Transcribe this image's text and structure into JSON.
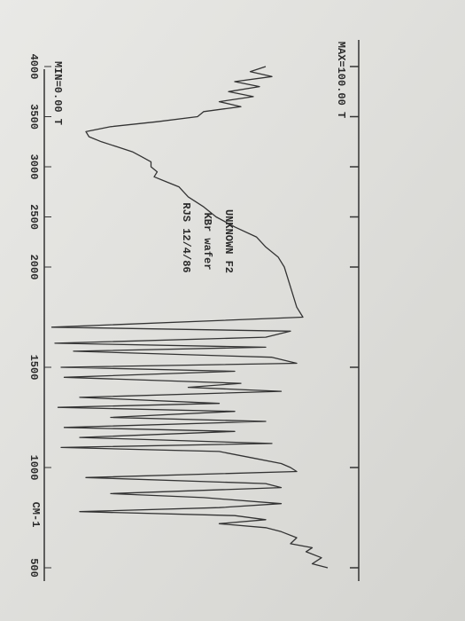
{
  "chart_data": {
    "type": "line",
    "max_label": "MAX=100.00 T",
    "min_label": "MIN=0.00 T",
    "x_label": "CM-1",
    "annotations": [
      "UNKNOWN F2",
      "KBr wafer",
      "RJS 12/4/86"
    ],
    "xlim": [
      4000,
      500
    ],
    "ylim": [
      0,
      100
    ],
    "xticks": [
      4000,
      3500,
      3000,
      2500,
      2000,
      1500,
      1000,
      500
    ],
    "color": "#333333",
    "x": [
      4000,
      3950,
      3900,
      3850,
      3800,
      3750,
      3700,
      3650,
      3600,
      3550,
      3500,
      3450,
      3400,
      3350,
      3300,
      3250,
      3200,
      3150,
      3100,
      3050,
      3000,
      2950,
      2900,
      2850,
      2800,
      2700,
      2600,
      2500,
      2400,
      2300,
      2200,
      2100,
      2000,
      1900,
      1800,
      1750,
      1700,
      1680,
      1650,
      1620,
      1600,
      1580,
      1550,
      1520,
      1500,
      1480,
      1450,
      1420,
      1400,
      1380,
      1350,
      1320,
      1300,
      1280,
      1250,
      1230,
      1200,
      1180,
      1150,
      1120,
      1100,
      1080,
      1050,
      1020,
      1000,
      980,
      950,
      920,
      900,
      870,
      850,
      820,
      800,
      780,
      760,
      740,
      720,
      700,
      680,
      650,
      620,
      600,
      580,
      550,
      520,
      500
    ],
    "values": [
      70,
      65,
      72,
      60,
      68,
      58,
      66,
      55,
      62,
      50,
      48,
      35,
      20,
      12,
      13,
      17,
      22,
      27,
      30,
      33,
      33,
      35,
      34,
      38,
      42,
      45,
      50,
      54,
      60,
      67,
      70,
      74,
      76,
      78,
      80,
      82,
      1,
      78,
      70,
      2,
      70,
      8,
      72,
      80,
      4,
      60,
      5,
      62,
      45,
      75,
      10,
      55,
      3,
      60,
      20,
      70,
      5,
      60,
      10,
      72,
      4,
      55,
      65,
      75,
      78,
      80,
      12,
      70,
      75,
      20,
      50,
      75,
      55,
      10,
      60,
      70,
      55,
      70,
      75,
      80,
      78,
      85,
      83,
      88,
      85,
      90
    ]
  }
}
